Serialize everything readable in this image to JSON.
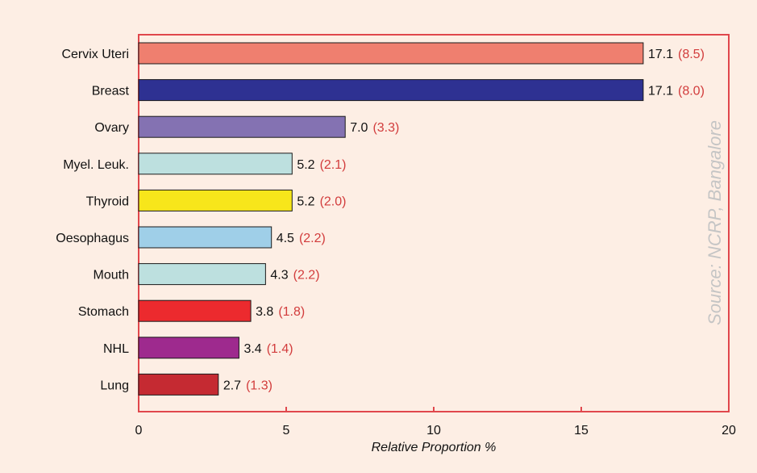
{
  "chart_data": {
    "type": "bar",
    "orientation": "horizontal",
    "categories": [
      "Cervix Uteri",
      "Breast",
      "Ovary",
      "Myel. Leuk.",
      "Thyroid",
      "Oesophagus",
      "Mouth",
      "Stomach",
      "NHL",
      "Lung"
    ],
    "values": [
      17.1,
      17.1,
      7.0,
      5.2,
      5.2,
      4.5,
      4.3,
      3.8,
      3.4,
      2.7
    ],
    "secondary_values": [
      "(8.5)",
      "(8.0)",
      "(3.3)",
      "(2.1)",
      "(2.0)",
      "(2.2)",
      "(2.2)",
      "(1.8)",
      "(1.4)",
      "(1.3)"
    ],
    "value_labels": [
      "17.1",
      "17.1",
      "7.0",
      "5.2",
      "5.2",
      "4.5",
      "4.3",
      "3.8",
      "3.4",
      "2.7"
    ],
    "colors": [
      "#ef7f6f",
      "#2e3192",
      "#8472b2",
      "#bde0df",
      "#f7e61b",
      "#9fcfe8",
      "#bde0df",
      "#ec2a2e",
      "#9e2a8e",
      "#c52a32"
    ],
    "xlabel": "Relative Proportion %",
    "xlim": [
      0,
      20
    ],
    "xticks": [
      0,
      5,
      10,
      15,
      20
    ],
    "tick_labels": [
      "0",
      "5",
      "10",
      "15",
      "20"
    ],
    "grid": false,
    "annotation": "Source: NCRP, Bangalore"
  },
  "colors": {
    "background": "#fdeee4",
    "axis_frame": "#e0474c",
    "secondary_label": "#d23c3c"
  }
}
